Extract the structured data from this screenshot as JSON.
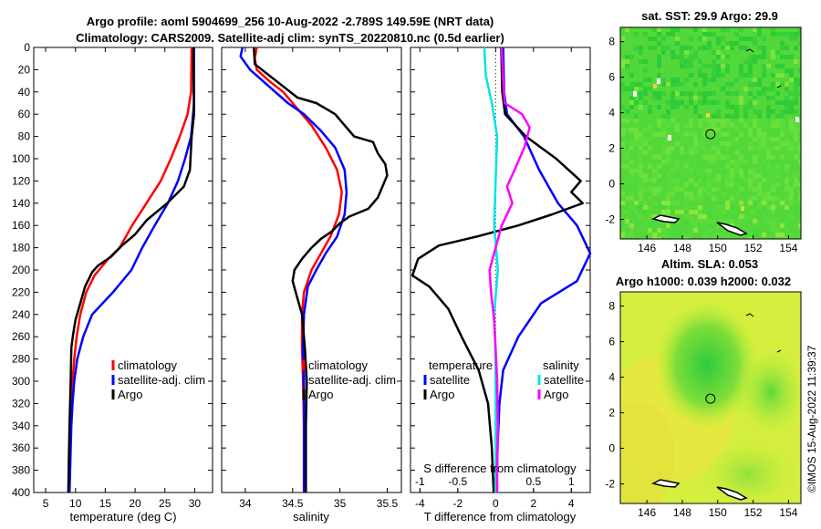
{
  "header": {
    "title_line1": "Argo profile: aoml 5904699_256 10-Aug-2022 -2.789S 149.59E (NRT data)",
    "title_line2": "Climatology: CARS2009. Satellite-adj clim: synTS_20220810.nc (0.5d earlier)"
  },
  "footer": {
    "stamp": "©IMOS 15-Aug-2022 11:39:37"
  },
  "colors": {
    "climatology": "#ff0000",
    "satellite": "#0000ff",
    "argo": "#000000",
    "sat_diff_s": "#00e5e5",
    "argo_diff_s": "#ff00ff"
  },
  "chart_data": [
    {
      "type": "line",
      "panel": "temperature",
      "xlabel": "temperature (deg C)",
      "ylabel": "",
      "xlim": [
        3,
        33
      ],
      "ylim": [
        400,
        0
      ],
      "xticks": [
        5,
        10,
        15,
        20,
        25,
        30
      ],
      "yticks": [
        0,
        20,
        40,
        60,
        80,
        100,
        120,
        140,
        160,
        180,
        200,
        220,
        240,
        260,
        280,
        300,
        320,
        340,
        360,
        380,
        400
      ],
      "legend": [
        "climatology",
        "satellite-adj. clim",
        "Argo"
      ],
      "series": [
        {
          "name": "climatology",
          "color": "#ff0000",
          "points": [
            [
              29.5,
              0
            ],
            [
              29.4,
              40
            ],
            [
              28.8,
              60
            ],
            [
              27.5,
              80
            ],
            [
              26.0,
              100
            ],
            [
              24.3,
              120
            ],
            [
              21.9,
              140
            ],
            [
              19.5,
              160
            ],
            [
              17.4,
              180
            ],
            [
              15.5,
              190
            ],
            [
              13.2,
              205
            ],
            [
              11.8,
              220
            ],
            [
              10.8,
              240
            ],
            [
              10.2,
              260
            ],
            [
              9.8,
              280
            ],
            [
              9.5,
              300
            ],
            [
              9.3,
              320
            ],
            [
              9.2,
              340
            ],
            [
              9.1,
              360
            ],
            [
              9.0,
              380
            ],
            [
              8.9,
              400
            ]
          ]
        },
        {
          "name": "satellite-adj. clim",
          "color": "#0000ff",
          "points": [
            [
              29.9,
              0
            ],
            [
              29.9,
              50
            ],
            [
              29.4,
              80
            ],
            [
              28.4,
              100
            ],
            [
              27.2,
              120
            ],
            [
              25.5,
              140
            ],
            [
              23.3,
              160
            ],
            [
              21.2,
              180
            ],
            [
              19.4,
              200
            ],
            [
              16.3,
              220
            ],
            [
              12.8,
              240
            ],
            [
              11.3,
              260
            ],
            [
              10.3,
              280
            ],
            [
              9.8,
              300
            ],
            [
              9.5,
              320
            ],
            [
              9.3,
              340
            ],
            [
              9.2,
              360
            ],
            [
              9.1,
              380
            ],
            [
              9.0,
              400
            ]
          ]
        },
        {
          "name": "Argo",
          "color": "#000000",
          "points": [
            [
              29.8,
              0
            ],
            [
              29.8,
              20
            ],
            [
              29.9,
              60
            ],
            [
              29.5,
              80
            ],
            [
              29.3,
              100
            ],
            [
              29.2,
              110
            ],
            [
              28.2,
              125
            ],
            [
              25.4,
              140
            ],
            [
              22.0,
              155
            ],
            [
              20.0,
              168
            ],
            [
              17.8,
              178
            ],
            [
              16.0,
              188
            ],
            [
              13.8,
              196
            ],
            [
              12.8,
              202
            ],
            [
              11.6,
              215
            ],
            [
              10.8,
              230
            ],
            [
              10.0,
              245
            ],
            [
              9.6,
              258
            ],
            [
              9.3,
              270
            ],
            [
              9.2,
              300
            ],
            [
              9.0,
              340
            ],
            [
              8.9,
              370
            ],
            [
              8.8,
              400
            ]
          ]
        }
      ]
    },
    {
      "type": "line",
      "panel": "salinity",
      "xlabel": "salinity",
      "xlim": [
        33.75,
        35.65
      ],
      "ylim": [
        400,
        0
      ],
      "xticks": [
        34,
        34.5,
        35,
        35.5
      ],
      "legend": [
        "climatology",
        "satellite-adj. clim",
        "Argo"
      ],
      "series": [
        {
          "name": "climatology",
          "color": "#ff0000",
          "points": [
            [
              34.12,
              0
            ],
            [
              34.1,
              10
            ],
            [
              34.12,
              20
            ],
            [
              34.25,
              30
            ],
            [
              34.4,
              40
            ],
            [
              34.55,
              55
            ],
            [
              34.7,
              70
            ],
            [
              34.85,
              90
            ],
            [
              34.97,
              110
            ],
            [
              35.02,
              130
            ],
            [
              34.99,
              150
            ],
            [
              34.9,
              170
            ],
            [
              34.8,
              185
            ],
            [
              34.7,
              200
            ],
            [
              34.62,
              220
            ],
            [
              34.6,
              240
            ],
            [
              34.6,
              270
            ],
            [
              34.61,
              300
            ],
            [
              34.62,
              340
            ],
            [
              34.62,
              400
            ]
          ]
        },
        {
          "name": "satellite-adj. clim",
          "color": "#0000ff",
          "points": [
            [
              33.97,
              0
            ],
            [
              33.95,
              8
            ],
            [
              34.05,
              20
            ],
            [
              34.25,
              35
            ],
            [
              34.45,
              50
            ],
            [
              34.62,
              60
            ],
            [
              34.8,
              75
            ],
            [
              34.95,
              90
            ],
            [
              35.05,
              110
            ],
            [
              35.07,
              130
            ],
            [
              35.05,
              150
            ],
            [
              34.97,
              170
            ],
            [
              34.85,
              185
            ],
            [
              34.75,
              200
            ],
            [
              34.66,
              215
            ],
            [
              34.62,
              240
            ],
            [
              34.61,
              270
            ],
            [
              34.62,
              300
            ],
            [
              34.62,
              340
            ],
            [
              34.62,
              400
            ]
          ]
        },
        {
          "name": "Argo",
          "color": "#000000",
          "points": [
            [
              34.09,
              0
            ],
            [
              34.1,
              15
            ],
            [
              34.25,
              25
            ],
            [
              34.4,
              35
            ],
            [
              34.55,
              45
            ],
            [
              34.75,
              50
            ],
            [
              34.85,
              55
            ],
            [
              34.95,
              60
            ],
            [
              35.05,
              70
            ],
            [
              35.15,
              80
            ],
            [
              35.35,
              85
            ],
            [
              35.4,
              95
            ],
            [
              35.48,
              105
            ],
            [
              35.5,
              115
            ],
            [
              35.45,
              125
            ],
            [
              35.4,
              135
            ],
            [
              35.3,
              145
            ],
            [
              35.1,
              152
            ],
            [
              35.0,
              158
            ],
            [
              34.92,
              165
            ],
            [
              34.8,
              172
            ],
            [
              34.7,
              180
            ],
            [
              34.6,
              190
            ],
            [
              34.52,
              200
            ],
            [
              34.5,
              210
            ],
            [
              34.55,
              225
            ],
            [
              34.6,
              240
            ],
            [
              34.63,
              270
            ],
            [
              34.65,
              300
            ],
            [
              34.64,
              340
            ],
            [
              34.64,
              400
            ]
          ]
        }
      ]
    },
    {
      "type": "line",
      "panel": "difference",
      "xlabel": "T difference from climatology",
      "x2label": "S difference from climatology",
      "xlim": [
        -4.5,
        5.0
      ],
      "x2lim": [
        -1.125,
        1.25
      ],
      "ylim": [
        400,
        0
      ],
      "xticks": [
        -4,
        -2,
        0,
        2,
        4
      ],
      "x2ticks": [
        -1,
        -0.5,
        0,
        0.5,
        1
      ],
      "legend_temperature_title": "temperature",
      "legend_salinity_title": "salinity",
      "legend_entries": [
        "satellite",
        "Argo"
      ],
      "series": [
        {
          "name": "temperature satellite",
          "color": "#0000ff",
          "points": [
            [
              0.4,
              0
            ],
            [
              0.45,
              40
            ],
            [
              0.6,
              60
            ],
            [
              1.5,
              80
            ],
            [
              2.3,
              110
            ],
            [
              3.3,
              140
            ],
            [
              4.3,
              160
            ],
            [
              5.0,
              185
            ],
            [
              4.3,
              210
            ],
            [
              2.4,
              230
            ],
            [
              1.2,
              260
            ],
            [
              0.4,
              290
            ],
            [
              0.2,
              320
            ],
            [
              0.1,
              360
            ],
            [
              0.05,
              400
            ]
          ]
        },
        {
          "name": "temperature Argo",
          "color": "#000000",
          "points": [
            [
              0.3,
              0
            ],
            [
              0.35,
              40
            ],
            [
              0.5,
              60
            ],
            [
              1.6,
              80
            ],
            [
              3.2,
              100
            ],
            [
              4.5,
              120
            ],
            [
              4.0,
              130
            ],
            [
              4.6,
              140
            ],
            [
              3.0,
              150
            ],
            [
              1.2,
              160
            ],
            [
              -1.0,
              170
            ],
            [
              -3.0,
              178
            ],
            [
              -4.1,
              190
            ],
            [
              -4.4,
              205
            ],
            [
              -3.5,
              215
            ],
            [
              -2.5,
              235
            ],
            [
              -1.8,
              260
            ],
            [
              -0.9,
              290
            ],
            [
              -0.4,
              320
            ],
            [
              -0.2,
              360
            ],
            [
              -0.1,
              400
            ]
          ]
        },
        {
          "name": "salinity satellite",
          "color": "#00e5e5",
          "points": [
            [
              -0.15,
              0
            ],
            [
              -0.13,
              25
            ],
            [
              -0.05,
              50
            ],
            [
              0.02,
              80
            ],
            [
              0.0,
              120
            ],
            [
              -0.02,
              160
            ],
            [
              0.03,
              200
            ],
            [
              -0.02,
              240
            ],
            [
              0.0,
              280
            ],
            [
              0.0,
              320
            ],
            [
              0.0,
              360
            ],
            [
              0.0,
              400
            ]
          ]
        },
        {
          "name": "salinity Argo",
          "color": "#ff00ff",
          "points": [
            [
              0.08,
              0
            ],
            [
              0.1,
              30
            ],
            [
              0.12,
              50
            ],
            [
              0.35,
              60
            ],
            [
              0.45,
              72
            ],
            [
              0.38,
              90
            ],
            [
              0.25,
              110
            ],
            [
              0.15,
              125
            ],
            [
              0.22,
              140
            ],
            [
              0.08,
              160
            ],
            [
              0.0,
              180
            ],
            [
              -0.08,
              200
            ],
            [
              -0.06,
              220
            ],
            [
              -0.02,
              245
            ],
            [
              0.0,
              270
            ],
            [
              0.02,
              300
            ],
            [
              0.03,
              340
            ],
            [
              0.02,
              380
            ],
            [
              0.02,
              400
            ]
          ]
        }
      ]
    },
    {
      "type": "heatmap",
      "panel": "map_sst",
      "title": "sat. SST: 29.9 Argo: 29.9",
      "xlim": [
        144.5,
        154.7
      ],
      "ylim": [
        -3.1,
        8.8
      ],
      "xticks": [
        146,
        148,
        150,
        152,
        154
      ],
      "yticks": [
        -2,
        0,
        2,
        4,
        6,
        8
      ],
      "argo_position": [
        149.59,
        2.79
      ]
    },
    {
      "type": "heatmap",
      "panel": "map_sla",
      "title": "Altim. SLA: 0.053",
      "subtitle": "Argo h1000: 0.039 h2000: 0.032",
      "xlim": [
        144.5,
        154.7
      ],
      "ylim": [
        -3.1,
        8.8
      ],
      "xticks": [
        146,
        148,
        150,
        152,
        154
      ],
      "yticks": [
        -2,
        0,
        2,
        4,
        6,
        8
      ],
      "argo_position": [
        149.59,
        2.79
      ]
    }
  ]
}
